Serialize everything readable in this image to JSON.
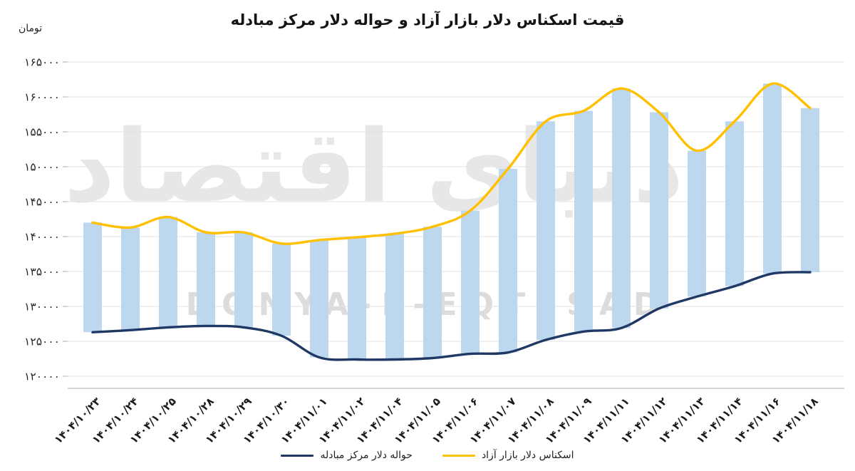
{
  "watermark": {
    "persian": "دنیای اقتصاد",
    "latin": "DONYA-E-EQTESAD"
  },
  "chart_data": {
    "type": "combo: floating range bars between two smoothed line series",
    "title": "قیمت اسکناس دلار بازار آزاد و حواله دلار مرکز مبادله",
    "y_unit": "تومان",
    "ylim": [
      120000,
      165000
    ],
    "grid": true,
    "legend_position": "bottom",
    "x_tick_rotation_deg": -45,
    "colors": {
      "bar": "#bdd7ee",
      "grid": "#e2e2e2",
      "axis": "#adadad",
      "tick_text": "#2b2b2b"
    },
    "y_ticks": [
      {
        "value": 165000,
        "label": "۱۶۵۰۰۰"
      },
      {
        "value": 160000,
        "label": "۱۶۰۰۰۰"
      },
      {
        "value": 155000,
        "label": "۱۵۵۰۰۰"
      },
      {
        "value": 150000,
        "label": "۱۵۰۰۰۰"
      },
      {
        "value": 145000,
        "label": "۱۴۵۰۰۰"
      },
      {
        "value": 140000,
        "label": "۱۴۰۰۰۰"
      },
      {
        "value": 135000,
        "label": "۱۳۵۰۰۰"
      },
      {
        "value": 130000,
        "label": "۱۳۰۰۰۰"
      },
      {
        "value": 125000,
        "label": "۱۲۵۰۰۰"
      },
      {
        "value": 120000,
        "label": "۱۲۰۰۰۰"
      }
    ],
    "categories": [
      "۱۴۰۴/۱۰/۲۳",
      "۱۴۰۴/۱۰/۲۴",
      "۱۴۰۴/۱۰/۲۵",
      "۱۴۰۴/۱۰/۲۸",
      "۱۴۰۴/۱۰/۲۹",
      "۱۴۰۴/۱۰/۳۰",
      "۱۴۰۴/۱۱/۰۱",
      "۱۴۰۴/۱۱/۰۲",
      "۱۴۰۴/۱۱/۰۴",
      "۱۴۰۴/۱۱/۰۵",
      "۱۴۰۴/۱۱/۰۶",
      "۱۴۰۴/۱۱/۰۷",
      "۱۴۰۴/۱۱/۰۸",
      "۱۴۰۴/۱۱/۰۹",
      "۱۴۰۴/۱۱/۱۱",
      "۱۴۰۴/۱۱/۱۲",
      "۱۴۰۴/۱۱/۱۳",
      "۱۴۰۴/۱۱/۱۴",
      "۱۴۰۴/۱۱/۱۶",
      "۱۴۰۴/۱۱/۱۸"
    ],
    "series": [
      {
        "name": "اسکناس دلار بازار آزاد",
        "type": "line",
        "color": "#ffc000",
        "values": [
          142000,
          141300,
          142800,
          140600,
          140600,
          139000,
          139500,
          139900,
          140400,
          141400,
          143700,
          149700,
          156500,
          158000,
          161200,
          157800,
          152300,
          156500,
          161900,
          158400
        ]
      },
      {
        "name": "حواله دلار مرکز مبادله",
        "type": "line",
        "color": "#1f3864",
        "values": [
          126300,
          126600,
          127000,
          127200,
          127000,
          125800,
          122700,
          122400,
          122400,
          122600,
          123200,
          123400,
          125200,
          126400,
          126900,
          129700,
          131400,
          132900,
          134700,
          134900
        ]
      }
    ],
    "range_bars": {
      "color": "#bdd7ee",
      "between": [
        "حواله دلار مرکز مبادله",
        "اسکناس دلار بازار آزاد"
      ]
    }
  }
}
